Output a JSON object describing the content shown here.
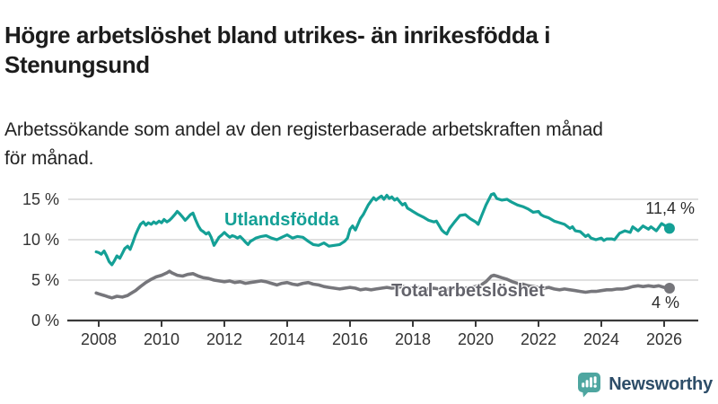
{
  "header": {
    "title_line1": "Högre arbetslöshet bland utrikes- än inrikesfödda i",
    "title_line2": "Stenungsund",
    "subtitle_line1": "Arbetssökande som andel av den registerbaserade arbetskraften månad",
    "subtitle_line2": "för månad."
  },
  "footer": {
    "brand": "Newsworthy"
  },
  "colors": {
    "teal": "#14a096",
    "gray_line": "#76767b",
    "gray_label": "#63636b",
    "axis_text": "#333333",
    "gridline": "#d6d6d6",
    "axis_line": "#3a3a3a",
    "brand_navy": "#2d4d68",
    "brand_teal": "#4ea6a0"
  },
  "chart_data": {
    "type": "line",
    "title": "Högre arbetslöshet bland utrikes- än inrikesfödda i Stenungsund",
    "subtitle": "Arbetssökande som andel av den registerbaserade arbetskraften månad för månad.",
    "x_axis": {
      "min": 2007.75,
      "max": 2027.1,
      "ticks": [
        2008,
        2010,
        2012,
        2014,
        2016,
        2018,
        2020,
        2022,
        2024,
        2026
      ]
    },
    "y_axis": {
      "unit": "%",
      "ylim": [
        0,
        16
      ],
      "ticks": [
        {
          "value": 0,
          "label": "0 %"
        },
        {
          "value": 5,
          "label": "5 %"
        },
        {
          "value": 10,
          "label": "10 %"
        },
        {
          "value": 15,
          "label": "15 %"
        }
      ],
      "grid": true
    },
    "series": [
      {
        "name": "Utlandsfödda",
        "color": "#14a096",
        "stroke_width": 3.2,
        "end_value": 11.4,
        "end_label": "11,4 %",
        "points": [
          [
            2007.92,
            8.5
          ],
          [
            2008.0,
            8.4
          ],
          [
            2008.08,
            8.2
          ],
          [
            2008.17,
            8.6
          ],
          [
            2008.25,
            8.0
          ],
          [
            2008.33,
            7.3
          ],
          [
            2008.42,
            6.9
          ],
          [
            2008.5,
            7.4
          ],
          [
            2008.58,
            8.0
          ],
          [
            2008.67,
            7.7
          ],
          [
            2008.75,
            8.3
          ],
          [
            2008.83,
            8.9
          ],
          [
            2008.92,
            9.2
          ],
          [
            2009.0,
            8.8
          ],
          [
            2009.08,
            9.6
          ],
          [
            2009.17,
            10.6
          ],
          [
            2009.25,
            11.3
          ],
          [
            2009.33,
            11.9
          ],
          [
            2009.42,
            12.2
          ],
          [
            2009.5,
            11.8
          ],
          [
            2009.58,
            12.1
          ],
          [
            2009.67,
            11.9
          ],
          [
            2009.75,
            12.2
          ],
          [
            2009.83,
            12.0
          ],
          [
            2009.92,
            12.3
          ],
          [
            2010.0,
            12.1
          ],
          [
            2010.08,
            12.5
          ],
          [
            2010.17,
            12.2
          ],
          [
            2010.25,
            12.4
          ],
          [
            2010.33,
            12.7
          ],
          [
            2010.42,
            13.1
          ],
          [
            2010.5,
            13.5
          ],
          [
            2010.58,
            13.2
          ],
          [
            2010.67,
            12.8
          ],
          [
            2010.75,
            12.4
          ],
          [
            2010.83,
            12.7
          ],
          [
            2010.92,
            13.1
          ],
          [
            2011.0,
            13.3
          ],
          [
            2011.08,
            12.5
          ],
          [
            2011.17,
            11.7
          ],
          [
            2011.25,
            11.2
          ],
          [
            2011.33,
            11.0
          ],
          [
            2011.42,
            10.7
          ],
          [
            2011.5,
            10.9
          ],
          [
            2011.58,
            10.3
          ],
          [
            2011.67,
            9.3
          ],
          [
            2011.75,
            9.8
          ],
          [
            2011.83,
            10.3
          ],
          [
            2011.92,
            10.6
          ],
          [
            2012.0,
            10.9
          ],
          [
            2012.08,
            10.6
          ],
          [
            2012.17,
            10.3
          ],
          [
            2012.25,
            10.5
          ],
          [
            2012.33,
            10.4
          ],
          [
            2012.42,
            10.2
          ],
          [
            2012.5,
            10.4
          ],
          [
            2012.58,
            10.1
          ],
          [
            2012.67,
            9.7
          ],
          [
            2012.75,
            9.4
          ],
          [
            2012.83,
            9.8
          ],
          [
            2012.92,
            10.0
          ],
          [
            2013.0,
            10.2
          ],
          [
            2013.17,
            10.4
          ],
          [
            2013.33,
            10.5
          ],
          [
            2013.5,
            10.2
          ],
          [
            2013.67,
            10.0
          ],
          [
            2013.83,
            10.3
          ],
          [
            2014.0,
            10.6
          ],
          [
            2014.17,
            10.2
          ],
          [
            2014.33,
            10.4
          ],
          [
            2014.5,
            10.3
          ],
          [
            2014.67,
            9.8
          ],
          [
            2014.83,
            9.4
          ],
          [
            2015.0,
            9.3
          ],
          [
            2015.17,
            9.6
          ],
          [
            2015.33,
            9.2
          ],
          [
            2015.5,
            9.3
          ],
          [
            2015.67,
            9.4
          ],
          [
            2015.83,
            9.8
          ],
          [
            2015.92,
            10.2
          ],
          [
            2016.0,
            11.3
          ],
          [
            2016.08,
            11.7
          ],
          [
            2016.17,
            11.2
          ],
          [
            2016.25,
            11.9
          ],
          [
            2016.33,
            12.6
          ],
          [
            2016.42,
            13.1
          ],
          [
            2016.5,
            13.7
          ],
          [
            2016.58,
            14.3
          ],
          [
            2016.67,
            14.8
          ],
          [
            2016.75,
            15.2
          ],
          [
            2016.83,
            14.9
          ],
          [
            2016.92,
            15.2
          ],
          [
            2017.0,
            15.4
          ],
          [
            2017.08,
            15.0
          ],
          [
            2017.17,
            15.5
          ],
          [
            2017.25,
            15.1
          ],
          [
            2017.33,
            15.3
          ],
          [
            2017.42,
            14.9
          ],
          [
            2017.5,
            15.1
          ],
          [
            2017.58,
            14.7
          ],
          [
            2017.67,
            14.3
          ],
          [
            2017.75,
            14.5
          ],
          [
            2017.83,
            13.9
          ],
          [
            2017.92,
            13.7
          ],
          [
            2018.0,
            13.5
          ],
          [
            2018.17,
            13.1
          ],
          [
            2018.33,
            12.8
          ],
          [
            2018.5,
            12.4
          ],
          [
            2018.67,
            12.2
          ],
          [
            2018.75,
            12.3
          ],
          [
            2018.83,
            11.8
          ],
          [
            2018.92,
            11.2
          ],
          [
            2019.0,
            10.9
          ],
          [
            2019.08,
            10.7
          ],
          [
            2019.17,
            11.4
          ],
          [
            2019.33,
            12.2
          ],
          [
            2019.5,
            13.0
          ],
          [
            2019.67,
            13.1
          ],
          [
            2019.83,
            12.6
          ],
          [
            2020.0,
            12.2
          ],
          [
            2020.08,
            11.9
          ],
          [
            2020.17,
            12.8
          ],
          [
            2020.33,
            14.3
          ],
          [
            2020.5,
            15.6
          ],
          [
            2020.58,
            15.7
          ],
          [
            2020.67,
            15.1
          ],
          [
            2020.83,
            14.9
          ],
          [
            2021.0,
            15.0
          ],
          [
            2021.08,
            14.8
          ],
          [
            2021.17,
            14.6
          ],
          [
            2021.33,
            14.3
          ],
          [
            2021.5,
            14.1
          ],
          [
            2021.67,
            13.8
          ],
          [
            2021.83,
            13.4
          ],
          [
            2022.0,
            13.5
          ],
          [
            2022.08,
            13.1
          ],
          [
            2022.17,
            12.9
          ],
          [
            2022.33,
            12.7
          ],
          [
            2022.5,
            12.3
          ],
          [
            2022.67,
            12.1
          ],
          [
            2022.83,
            11.9
          ],
          [
            2023.0,
            11.4
          ],
          [
            2023.08,
            11.6
          ],
          [
            2023.17,
            11.1
          ],
          [
            2023.33,
            11.0
          ],
          [
            2023.5,
            10.4
          ],
          [
            2023.58,
            10.6
          ],
          [
            2023.67,
            10.2
          ],
          [
            2023.83,
            10.0
          ],
          [
            2024.0,
            10.2
          ],
          [
            2024.08,
            9.9
          ],
          [
            2024.17,
            10.1
          ],
          [
            2024.33,
            10.1
          ],
          [
            2024.42,
            10.0
          ],
          [
            2024.58,
            10.8
          ],
          [
            2024.75,
            11.1
          ],
          [
            2024.92,
            10.9
          ],
          [
            2025.0,
            11.6
          ],
          [
            2025.17,
            11.1
          ],
          [
            2025.33,
            11.7
          ],
          [
            2025.5,
            11.3
          ],
          [
            2025.58,
            11.6
          ],
          [
            2025.75,
            11.1
          ],
          [
            2025.92,
            12.0
          ],
          [
            2026.0,
            11.8
          ],
          [
            2026.17,
            11.4
          ]
        ]
      },
      {
        "name": "Total arbetslöshet",
        "color": "#76767b",
        "stroke_width": 3.6,
        "end_value": 4,
        "end_label": "4 %",
        "points": [
          [
            2007.92,
            3.4
          ],
          [
            2008.0,
            3.3
          ],
          [
            2008.17,
            3.1
          ],
          [
            2008.33,
            2.9
          ],
          [
            2008.42,
            2.8
          ],
          [
            2008.58,
            3.0
          ],
          [
            2008.75,
            2.9
          ],
          [
            2008.92,
            3.1
          ],
          [
            2009.0,
            3.3
          ],
          [
            2009.17,
            3.7
          ],
          [
            2009.33,
            4.2
          ],
          [
            2009.5,
            4.7
          ],
          [
            2009.67,
            5.1
          ],
          [
            2009.83,
            5.4
          ],
          [
            2010.0,
            5.6
          ],
          [
            2010.17,
            5.9
          ],
          [
            2010.25,
            6.1
          ],
          [
            2010.33,
            5.9
          ],
          [
            2010.5,
            5.6
          ],
          [
            2010.67,
            5.5
          ],
          [
            2010.83,
            5.7
          ],
          [
            2011.0,
            5.8
          ],
          [
            2011.17,
            5.5
          ],
          [
            2011.33,
            5.3
          ],
          [
            2011.5,
            5.2
          ],
          [
            2011.67,
            5.0
          ],
          [
            2011.83,
            4.9
          ],
          [
            2012.0,
            4.8
          ],
          [
            2012.17,
            4.9
          ],
          [
            2012.33,
            4.7
          ],
          [
            2012.5,
            4.8
          ],
          [
            2012.67,
            4.6
          ],
          [
            2012.83,
            4.7
          ],
          [
            2013.0,
            4.8
          ],
          [
            2013.17,
            4.9
          ],
          [
            2013.33,
            4.8
          ],
          [
            2013.5,
            4.6
          ],
          [
            2013.67,
            4.4
          ],
          [
            2013.83,
            4.6
          ],
          [
            2014.0,
            4.7
          ],
          [
            2014.17,
            4.5
          ],
          [
            2014.33,
            4.4
          ],
          [
            2014.5,
            4.6
          ],
          [
            2014.67,
            4.7
          ],
          [
            2014.83,
            4.5
          ],
          [
            2015.0,
            4.4
          ],
          [
            2015.17,
            4.2
          ],
          [
            2015.33,
            4.1
          ],
          [
            2015.5,
            4.0
          ],
          [
            2015.67,
            3.9
          ],
          [
            2015.83,
            4.0
          ],
          [
            2016.0,
            4.1
          ],
          [
            2016.17,
            4.0
          ],
          [
            2016.33,
            3.8
          ],
          [
            2016.5,
            3.9
          ],
          [
            2016.67,
            3.8
          ],
          [
            2016.83,
            3.9
          ],
          [
            2017.0,
            4.0
          ],
          [
            2017.17,
            4.1
          ],
          [
            2017.33,
            4.0
          ],
          [
            2017.5,
            4.1
          ],
          [
            2017.67,
            4.2
          ],
          [
            2017.83,
            4.1
          ],
          [
            2018.0,
            4.0
          ],
          [
            2018.17,
            4.1
          ],
          [
            2018.33,
            4.0
          ],
          [
            2018.5,
            3.9
          ],
          [
            2018.67,
            4.0
          ],
          [
            2018.83,
            3.9
          ],
          [
            2019.0,
            3.8
          ],
          [
            2019.17,
            3.9
          ],
          [
            2019.33,
            4.0
          ],
          [
            2019.5,
            4.1
          ],
          [
            2019.67,
            4.0
          ],
          [
            2019.83,
            4.1
          ],
          [
            2020.0,
            4.2
          ],
          [
            2020.17,
            4.4
          ],
          [
            2020.33,
            4.8
          ],
          [
            2020.5,
            5.5
          ],
          [
            2020.58,
            5.6
          ],
          [
            2020.67,
            5.5
          ],
          [
            2020.83,
            5.3
          ],
          [
            2021.0,
            5.1
          ],
          [
            2021.17,
            4.8
          ],
          [
            2021.33,
            4.6
          ],
          [
            2021.5,
            4.5
          ],
          [
            2021.67,
            4.3
          ],
          [
            2021.83,
            4.2
          ],
          [
            2022.0,
            4.1
          ],
          [
            2022.17,
            4.0
          ],
          [
            2022.33,
            4.1
          ],
          [
            2022.5,
            3.9
          ],
          [
            2022.67,
            3.8
          ],
          [
            2022.83,
            3.9
          ],
          [
            2023.0,
            3.8
          ],
          [
            2023.17,
            3.7
          ],
          [
            2023.33,
            3.6
          ],
          [
            2023.5,
            3.5
          ],
          [
            2023.67,
            3.6
          ],
          [
            2023.83,
            3.6
          ],
          [
            2024.0,
            3.7
          ],
          [
            2024.17,
            3.8
          ],
          [
            2024.33,
            3.8
          ],
          [
            2024.5,
            3.9
          ],
          [
            2024.67,
            3.9
          ],
          [
            2024.83,
            4.0
          ],
          [
            2025.0,
            4.2
          ],
          [
            2025.17,
            4.3
          ],
          [
            2025.33,
            4.2
          ],
          [
            2025.5,
            4.3
          ],
          [
            2025.67,
            4.2
          ],
          [
            2025.83,
            4.3
          ],
          [
            2026.0,
            4.1
          ],
          [
            2026.17,
            4.0
          ]
        ]
      }
    ],
    "legend_position": "inline-labels"
  }
}
